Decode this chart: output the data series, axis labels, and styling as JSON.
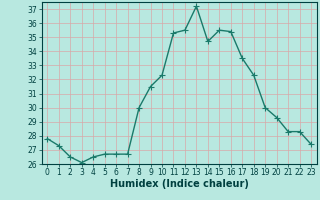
{
  "x": [
    0,
    1,
    2,
    3,
    4,
    5,
    6,
    7,
    8,
    9,
    10,
    11,
    12,
    13,
    14,
    15,
    16,
    17,
    18,
    19,
    20,
    21,
    22,
    23
  ],
  "y": [
    27.8,
    27.3,
    26.5,
    26.1,
    26.5,
    26.7,
    26.7,
    26.7,
    30.0,
    31.5,
    32.3,
    35.3,
    35.5,
    37.2,
    34.7,
    35.5,
    35.4,
    33.5,
    32.3,
    30.0,
    29.3,
    28.3,
    28.3,
    27.4
  ],
  "line_color": "#1a7a6a",
  "marker": "+",
  "marker_size": 4,
  "bg_color": "#b8e8e0",
  "grid_color": "#d8a8a8",
  "xlabel": "Humidex (Indice chaleur)",
  "ylim": [
    26,
    37.5
  ],
  "xlim": [
    -0.5,
    23.5
  ],
  "yticks": [
    26,
    27,
    28,
    29,
    30,
    31,
    32,
    33,
    34,
    35,
    36,
    37
  ],
  "xticks": [
    0,
    1,
    2,
    3,
    4,
    5,
    6,
    7,
    8,
    9,
    10,
    11,
    12,
    13,
    14,
    15,
    16,
    17,
    18,
    19,
    20,
    21,
    22,
    23
  ],
  "tick_fontsize": 5.5,
  "xlabel_fontsize": 7,
  "line_width": 1.0
}
